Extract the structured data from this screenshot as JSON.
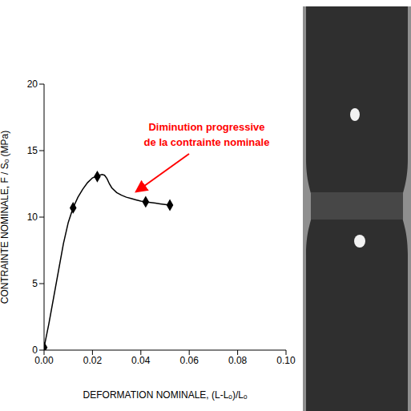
{
  "chart_data": {
    "type": "line",
    "xlabel": "DEFORMATION NOMINALE,  (L-Lₒ)/Lₒ",
    "ylabel": "CONTRAINTE NOMINALE,  F / Sₒ (MPa)",
    "xlim": [
      0,
      0.1
    ],
    "xticks": [
      {
        "value": 0,
        "label": "0.00"
      },
      {
        "value": 0.02,
        "label": "0.02"
      },
      {
        "value": 0.04,
        "label": "0.04"
      },
      {
        "value": 0.06,
        "label": "0.06"
      },
      {
        "value": 0.08,
        "label": "0.08"
      },
      {
        "value": 0.1,
        "label": "0.10"
      }
    ],
    "ylim": [
      0,
      20
    ],
    "yticks": [
      0,
      5,
      10,
      15,
      20
    ],
    "grid": false,
    "series": [
      {
        "type": "line",
        "color": "#000000",
        "x": [
          0,
          0.002,
          0.004,
          0.006,
          0.008,
          0.01,
          0.012,
          0.014,
          0.016,
          0.018,
          0.02,
          0.022,
          0.024,
          0.025,
          0.026,
          0.027,
          0.028,
          0.03,
          0.032,
          0.034,
          0.036,
          0.038,
          0.04,
          0.042,
          0.044,
          0.046,
          0.048,
          0.05,
          0.052
        ],
        "values": [
          0.2,
          2.0,
          4.0,
          6.0,
          8.0,
          9.6,
          10.7,
          11.5,
          12.1,
          12.6,
          12.95,
          13.1,
          13.2,
          13.15,
          12.9,
          12.5,
          12.2,
          11.85,
          11.65,
          11.5,
          11.4,
          11.3,
          11.2,
          11.15,
          11.1,
          11.05,
          11.0,
          10.95,
          10.9
        ]
      },
      {
        "type": "scatter",
        "marker": "diamond",
        "color": "#000000",
        "x": [
          0,
          0.012,
          0.022,
          0.042,
          0.052
        ],
        "values": [
          0.2,
          10.7,
          13.05,
          11.15,
          10.9
        ]
      }
    ],
    "annotations": [
      {
        "text": [
          "Diminution progressive",
          "de la contrainte nominale"
        ],
        "xy": [
          0.037,
          11.6
        ],
        "color": "#ff0000"
      }
    ]
  }
}
